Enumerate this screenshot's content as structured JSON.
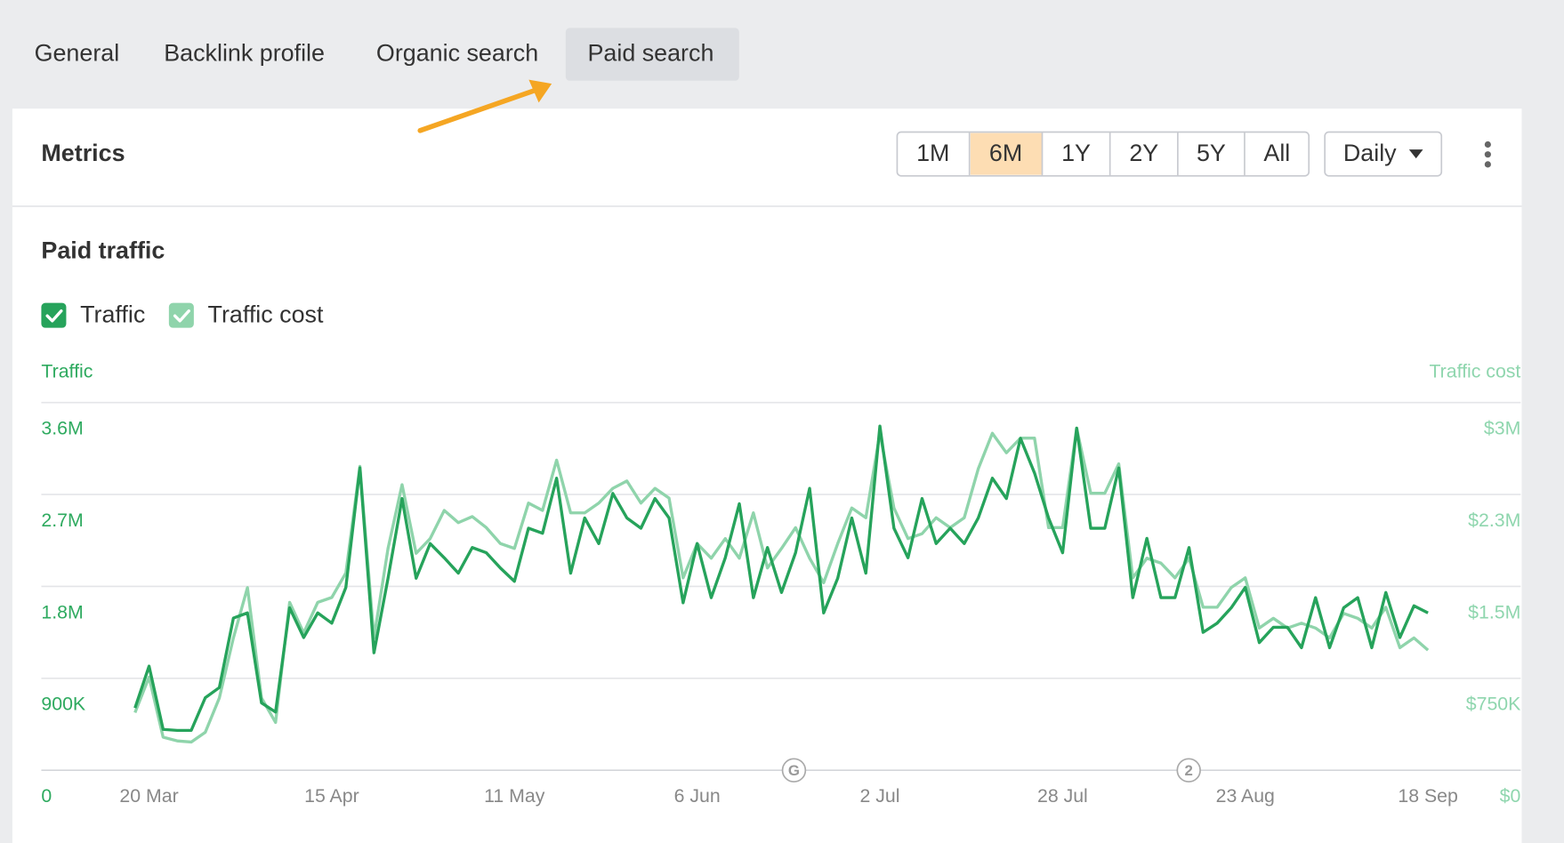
{
  "tabs": [
    {
      "label": "General"
    },
    {
      "label": "Backlink profile"
    },
    {
      "label": "Organic search"
    },
    {
      "label": "Paid search",
      "active": true
    }
  ],
  "panel": {
    "title": "Metrics",
    "ranges": [
      {
        "label": "1M"
      },
      {
        "label": "6M",
        "active": true
      },
      {
        "label": "1Y"
      },
      {
        "label": "2Y"
      },
      {
        "label": "5Y"
      },
      {
        "label": "All"
      }
    ],
    "interval": "Daily"
  },
  "chart_data": {
    "type": "line",
    "title": "Paid traffic",
    "ylabel": "Traffic",
    "y2label": "Traffic cost",
    "categories": [
      null,
      "20 Mar",
      null,
      null,
      null,
      null,
      null,
      null,
      null,
      null,
      null,
      null,
      null,
      null,
      "15 Apr",
      null,
      null,
      null,
      null,
      null,
      null,
      null,
      null,
      null,
      null,
      null,
      null,
      "11 May",
      null,
      null,
      null,
      null,
      null,
      null,
      null,
      null,
      null,
      null,
      null,
      null,
      "6 Jun",
      null,
      null,
      null,
      null,
      null,
      null,
      null,
      null,
      null,
      null,
      null,
      null,
      "2 Jul",
      null,
      null,
      null,
      null,
      null,
      null,
      null,
      null,
      null,
      null,
      null,
      null,
      "28 Jul",
      null,
      null,
      null,
      null,
      null,
      null,
      null,
      null,
      null,
      null,
      null,
      null,
      "23 Aug",
      null,
      null,
      null,
      null,
      null,
      null,
      null,
      null,
      null,
      null,
      null,
      null,
      "18 Sep"
    ],
    "series": [
      {
        "name": "Traffic",
        "color": "#26a35b",
        "values": [
          610000,
          1020000,
          400000,
          390000,
          390000,
          710000,
          810000,
          1490000,
          1540000,
          660000,
          570000,
          1590000,
          1300000,
          1540000,
          1440000,
          1790000,
          2960000,
          1150000,
          1880000,
          2660000,
          1880000,
          2220000,
          2080000,
          1930000,
          2180000,
          2130000,
          1980000,
          1850000,
          2370000,
          2320000,
          2860000,
          1930000,
          2470000,
          2220000,
          2710000,
          2470000,
          2370000,
          2660000,
          2470000,
          1640000,
          2220000,
          1690000,
          2080000,
          2610000,
          1690000,
          2180000,
          1740000,
          2130000,
          2760000,
          1540000,
          1880000,
          2470000,
          1930000,
          3370000,
          2370000,
          2080000,
          2660000,
          2220000,
          2370000,
          2220000,
          2470000,
          2860000,
          2660000,
          3250000,
          2910000,
          2470000,
          2130000,
          3350000,
          2370000,
          2370000,
          2960000,
          1690000,
          2270000,
          1690000,
          1690000,
          2180000,
          1350000,
          1440000,
          1590000,
          1790000,
          1250000,
          1400000,
          1400000,
          1200000,
          1690000,
          1200000,
          1590000,
          1690000,
          1200000,
          1740000,
          1300000,
          1610000,
          1540000
        ]
      },
      {
        "name": "Traffic cost",
        "color": "#8fd4ab",
        "axis": "y2",
        "values": [
          470000,
          760000,
          270000,
          240000,
          230000,
          310000,
          590000,
          1080000,
          1490000,
          590000,
          390000,
          1370000,
          1120000,
          1370000,
          1410000,
          1610000,
          2480000,
          1080000,
          1810000,
          2330000,
          1770000,
          1890000,
          2120000,
          2020000,
          2070000,
          1980000,
          1850000,
          1810000,
          2180000,
          2120000,
          2530000,
          2100000,
          2100000,
          2180000,
          2300000,
          2360000,
          2180000,
          2300000,
          2220000,
          1570000,
          1850000,
          1730000,
          1890000,
          1730000,
          2100000,
          1650000,
          1810000,
          1980000,
          1730000,
          1530000,
          1850000,
          2140000,
          2060000,
          2750000,
          2140000,
          1890000,
          1930000,
          2060000,
          1980000,
          2060000,
          2460000,
          2750000,
          2590000,
          2710000,
          2710000,
          1980000,
          1980000,
          2790000,
          2260000,
          2260000,
          2500000,
          1570000,
          1730000,
          1690000,
          1570000,
          1730000,
          1330000,
          1330000,
          1490000,
          1570000,
          1160000,
          1240000,
          1160000,
          1200000,
          1160000,
          1080000,
          1280000,
          1240000,
          1160000,
          1330000,
          1000000,
          1080000,
          980000
        ]
      }
    ],
    "ylim": [
      0,
      3600000
    ],
    "yticks": [
      0,
      {
        "value": 900000,
        "label": "900K"
      },
      {
        "value": 1800000,
        "label": "1.8M"
      },
      {
        "value": 2700000,
        "label": "2.7M"
      },
      {
        "value": 3600000,
        "label": "3.6M"
      }
    ],
    "y2lim": [
      0,
      3000000
    ],
    "y2ticks": [
      {
        "value": 0,
        "label": "$0"
      },
      {
        "value": 750000,
        "label": "$750K"
      },
      {
        "value": 1500000,
        "label": "$1.5M"
      },
      {
        "value": 2250000,
        "label": "$2.3M"
      },
      {
        "value": 3000000,
        "label": "$3M"
      }
    ],
    "grid": true,
    "annotations": [
      "G",
      "2"
    ]
  }
}
